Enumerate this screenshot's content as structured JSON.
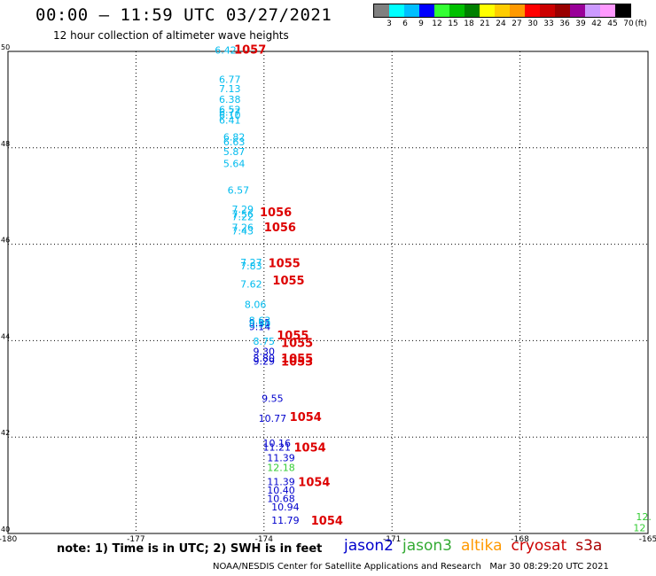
{
  "header": {
    "title": "00:00 – 11:59 UTC 03/27/2021",
    "subtitle": "12 hour collection of altimeter wave heights"
  },
  "color_scale": {
    "colors": [
      "#808080",
      "#00ffff",
      "#00bfff",
      "#0000ff",
      "#33ff33",
      "#00c000",
      "#008000",
      "#ffff00",
      "#ffcc00",
      "#ff9900",
      "#ff0000",
      "#cc0000",
      "#990000",
      "#990099",
      "#cc99ff",
      "#ff99ff",
      "#000000"
    ],
    "labels": [
      "3",
      "6",
      "9",
      "12",
      "15",
      "18",
      "21",
      "24",
      "27",
      "30",
      "33",
      "36",
      "39",
      "42",
      "45",
      "70"
    ],
    "unit": "(ft)"
  },
  "chart_data": {
    "type": "scatter",
    "title": "00:00 – 11:59 UTC 03/27/2021",
    "subtitle": "12 hour collection of altimeter wave heights",
    "xlim": [
      -180,
      -165
    ],
    "ylim": [
      40,
      50
    ],
    "x_ticks": [
      "-180",
      "-177",
      "-174",
      "-171",
      "-168",
      "-165"
    ],
    "y_ticks": [
      "40",
      "42",
      "44",
      "46",
      "48",
      "50"
    ],
    "grid": true,
    "series": [
      {
        "name": "jason2",
        "color": "#0000cc",
        "points": [
          {
            "lon": -174.1,
            "lat": 44.3,
            "label": "9.35"
          },
          {
            "lon": -174.1,
            "lat": 44.22,
            "label": "9.14"
          },
          {
            "lon": -174.0,
            "lat": 43.7,
            "label": "9.30"
          },
          {
            "lon": -174.0,
            "lat": 43.57,
            "label": "8.80"
          },
          {
            "lon": -174.0,
            "lat": 43.5,
            "label": "9.29"
          },
          {
            "lon": -173.8,
            "lat": 42.73,
            "label": "9.55"
          },
          {
            "lon": -173.8,
            "lat": 42.32,
            "label": "10.77"
          },
          {
            "lon": -173.7,
            "lat": 41.8,
            "label": "10.16"
          },
          {
            "lon": -173.7,
            "lat": 41.72,
            "label": "11.21"
          },
          {
            "lon": -173.6,
            "lat": 41.5,
            "label": "11.39"
          },
          {
            "lon": -173.6,
            "lat": 41.0,
            "label": "11.39"
          },
          {
            "lon": -173.6,
            "lat": 40.83,
            "label": "10.40"
          },
          {
            "lon": -173.6,
            "lat": 40.65,
            "label": "10.68"
          },
          {
            "lon": -173.5,
            "lat": 40.48,
            "label": "10.94"
          },
          {
            "lon": -173.5,
            "lat": 40.2,
            "label": "11.79"
          }
        ]
      },
      {
        "name": "jason3",
        "color": "#33cc33",
        "points": [
          {
            "lon": -173.6,
            "lat": 41.3,
            "label": "12.18"
          },
          {
            "lon": -165.1,
            "lat": 40.28,
            "label": "12."
          },
          {
            "lon": -165.2,
            "lat": 40.05,
            "label": "12"
          }
        ]
      },
      {
        "name": "altika",
        "color": "#ff9900",
        "points": []
      },
      {
        "name": "cryosat",
        "color": "#cc0000",
        "points": []
      },
      {
        "name": "s3a",
        "color": "#cc0000",
        "points": []
      },
      {
        "name": "cyan_obs",
        "color": "#00bbee",
        "points": [
          {
            "lon": -174.9,
            "lat": 49.95,
            "label": "6.42"
          },
          {
            "lon": -174.8,
            "lat": 49.35,
            "label": "6.77"
          },
          {
            "lon": -174.8,
            "lat": 49.15,
            "label": "7.13"
          },
          {
            "lon": -174.8,
            "lat": 48.93,
            "label": "6.38"
          },
          {
            "lon": -174.8,
            "lat": 48.72,
            "label": "6.52"
          },
          {
            "lon": -174.8,
            "lat": 48.67,
            "label": "6.77"
          },
          {
            "lon": -174.8,
            "lat": 48.6,
            "label": "6.10"
          },
          {
            "lon": -174.8,
            "lat": 48.5,
            "label": "6.41"
          },
          {
            "lon": -174.7,
            "lat": 48.15,
            "label": "6.82"
          },
          {
            "lon": -174.7,
            "lat": 48.05,
            "label": "6.63"
          },
          {
            "lon": -174.7,
            "lat": 47.85,
            "label": "5.87"
          },
          {
            "lon": -174.7,
            "lat": 47.6,
            "label": "5.64"
          },
          {
            "lon": -174.6,
            "lat": 47.05,
            "label": "6.57"
          },
          {
            "lon": -174.5,
            "lat": 46.65,
            "label": "7.29"
          },
          {
            "lon": -174.5,
            "lat": 46.55,
            "label": "7.56"
          },
          {
            "lon": -174.5,
            "lat": 46.5,
            "label": "7.22"
          },
          {
            "lon": -174.5,
            "lat": 46.28,
            "label": "7.26"
          },
          {
            "lon": -174.5,
            "lat": 46.2,
            "label": "7.43"
          },
          {
            "lon": -174.3,
            "lat": 45.55,
            "label": "7.27"
          },
          {
            "lon": -174.3,
            "lat": 45.48,
            "label": "7.83"
          },
          {
            "lon": -174.3,
            "lat": 45.1,
            "label": "7.62"
          },
          {
            "lon": -174.2,
            "lat": 44.68,
            "label": "8.06"
          },
          {
            "lon": -174.1,
            "lat": 44.35,
            "label": "8.63"
          },
          {
            "lon": -174.1,
            "lat": 44.27,
            "label": "8.90"
          },
          {
            "lon": -174.0,
            "lat": 43.92,
            "label": "8.75"
          }
        ]
      }
    ],
    "pressure_labels": [
      {
        "lon": -174.7,
        "lat": 49.95,
        "text": "1057"
      },
      {
        "lon": -174.1,
        "lat": 46.58,
        "text": "1056"
      },
      {
        "lon": -174.0,
        "lat": 46.27,
        "text": "1056"
      },
      {
        "lon": -173.9,
        "lat": 45.52,
        "text": "1055"
      },
      {
        "lon": -173.8,
        "lat": 45.17,
        "text": "1055"
      },
      {
        "lon": -173.7,
        "lat": 44.03,
        "text": "1055"
      },
      {
        "lon": -173.6,
        "lat": 43.87,
        "text": "1055"
      },
      {
        "lon": -173.6,
        "lat": 43.55,
        "text": "1055"
      },
      {
        "lon": -173.6,
        "lat": 43.48,
        "text": "1053"
      },
      {
        "lon": -173.4,
        "lat": 42.33,
        "text": "1054"
      },
      {
        "lon": -173.3,
        "lat": 41.7,
        "text": "1054"
      },
      {
        "lon": -173.2,
        "lat": 40.98,
        "text": "1054"
      },
      {
        "lon": -172.9,
        "lat": 40.18,
        "text": "1054"
      }
    ]
  },
  "footer": {
    "note": "note: 1) Time is in UTC; 2) SWH is in feet",
    "credit": "NOAA/NESDIS Center for Satellite Applications and Research   Mar 30 08:29:20 UTC 2021",
    "legend": [
      {
        "text": "jason2",
        "color": "#0000cc"
      },
      {
        "text": "jason3",
        "color": "#33aa33"
      },
      {
        "text": "altika",
        "color": "#ff9900"
      },
      {
        "text": "cryosat",
        "color": "#cc0000"
      },
      {
        "text": "s3a",
        "color": "#aa0000"
      }
    ]
  }
}
